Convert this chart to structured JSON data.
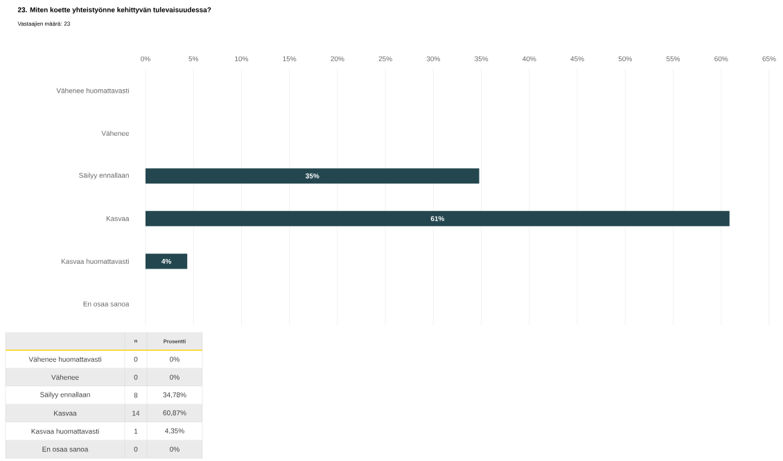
{
  "chart_data": {
    "type": "bar",
    "orientation": "horizontal",
    "title": "23. Miten koette yhteistyönne kehittyvän tulevaisuudessa?",
    "subtitle": "Vastaajien määrä: 23",
    "categories": [
      "Vähenee huomattavasti",
      "Vähenee",
      "Säilyy ennallaan",
      "Kasvaa",
      "Kasvaa huomattavasti",
      "En osaa sanoa"
    ],
    "values": [
      0,
      0,
      34.78,
      60.87,
      4.35,
      0
    ],
    "value_labels": [
      null,
      null,
      "35%",
      "61%",
      "4%",
      null
    ],
    "color": "#24474f",
    "xlim": [
      0,
      65
    ],
    "xticks": [
      {
        "value": 0,
        "label": "0%"
      },
      {
        "value": 5,
        "label": "5%"
      },
      {
        "value": 10,
        "label": "10%"
      },
      {
        "value": 15,
        "label": "15%"
      },
      {
        "value": 20,
        "label": "20%"
      },
      {
        "value": 25,
        "label": "25%"
      },
      {
        "value": 30,
        "label": "30%"
      },
      {
        "value": 35,
        "label": "35%"
      },
      {
        "value": 40,
        "label": "40%"
      },
      {
        "value": 45,
        "label": "45%"
      },
      {
        "value": 50,
        "label": "50%"
      },
      {
        "value": 55,
        "label": "55%"
      },
      {
        "value": 60,
        "label": "60%"
      },
      {
        "value": 65,
        "label": "65%"
      }
    ],
    "grid": "x",
    "annotations": [
      "n",
      "Prosentti",
      "0",
      "0%",
      "0",
      "0%",
      "8",
      "34,78%",
      "14",
      "60,87%",
      "1",
      "4,35%",
      "0",
      "0%"
    ]
  }
}
